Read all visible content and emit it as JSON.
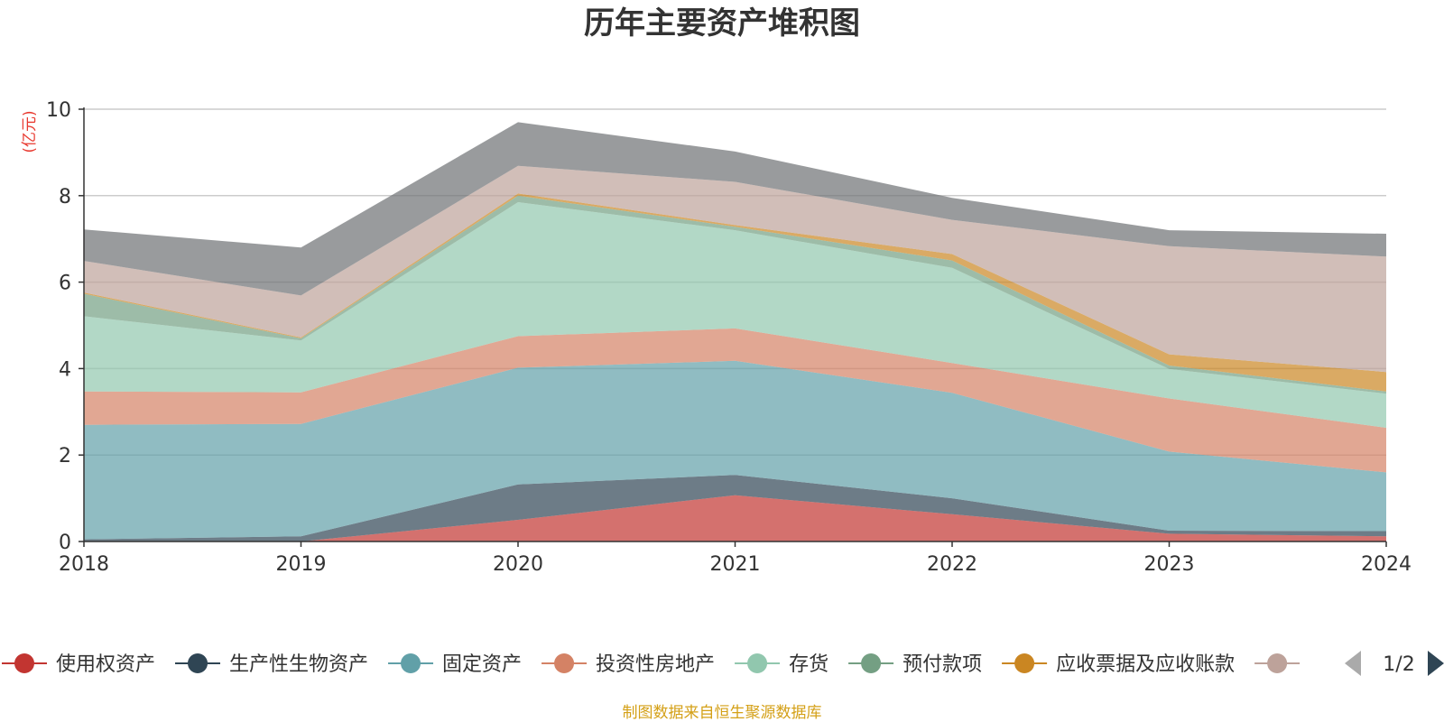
{
  "chart_data": {
    "type": "area",
    "stacked": true,
    "title": "历年主要资产堆积图",
    "unit": "(亿元)",
    "x": [
      "2018",
      "2019",
      "2020",
      "2021",
      "2022",
      "2023",
      "2024"
    ],
    "ylim": [
      0,
      10
    ],
    "yticks": [
      0,
      2,
      4,
      6,
      8,
      10
    ],
    "ytick_labels": [
      "0",
      "2",
      "4",
      "6",
      "8",
      "10"
    ],
    "grid": true,
    "legend_position": "bottom",
    "series": [
      {
        "name": "使用权资产",
        "color": "#c23531",
        "values": [
          0.0,
          0.0,
          0.5,
          1.07,
          0.63,
          0.18,
          0.12
        ]
      },
      {
        "name": "生产性生物资产",
        "color": "#2f4554",
        "values": [
          0.05,
          0.12,
          0.82,
          0.47,
          0.37,
          0.07,
          0.12
        ]
      },
      {
        "name": "固定资产",
        "color": "#61a0a8",
        "values": [
          2.65,
          2.6,
          2.7,
          2.64,
          2.44,
          1.83,
          1.36
        ]
      },
      {
        "name": "投资性房地产",
        "color": "#d48265",
        "values": [
          0.77,
          0.73,
          0.73,
          0.75,
          0.69,
          1.23,
          1.03
        ]
      },
      {
        "name": "存货",
        "color": "#91c7ae",
        "values": [
          1.74,
          1.2,
          3.1,
          2.27,
          2.2,
          0.68,
          0.79
        ]
      },
      {
        "name": "预付款项",
        "color": "#749f83",
        "values": [
          0.52,
          0.05,
          0.15,
          0.08,
          0.17,
          0.08,
          0.05
        ]
      },
      {
        "name": "应收票据及应收账款",
        "color": "#ca8622",
        "values": [
          0.03,
          0.02,
          0.05,
          0.04,
          0.15,
          0.26,
          0.45
        ]
      },
      {
        "name": "",
        "color": "#bda29a",
        "values": [
          0.73,
          0.97,
          0.64,
          1.0,
          0.79,
          2.5,
          2.67
        ]
      },
      {
        "name": "",
        "color": "#6e7074",
        "values": [
          0.73,
          1.11,
          1.01,
          0.7,
          0.51,
          0.37,
          0.53
        ]
      }
    ],
    "legend_visible_count": 8,
    "pager": {
      "text": "1/2"
    },
    "source_note": "制图数据来自恒生聚源数据库"
  }
}
